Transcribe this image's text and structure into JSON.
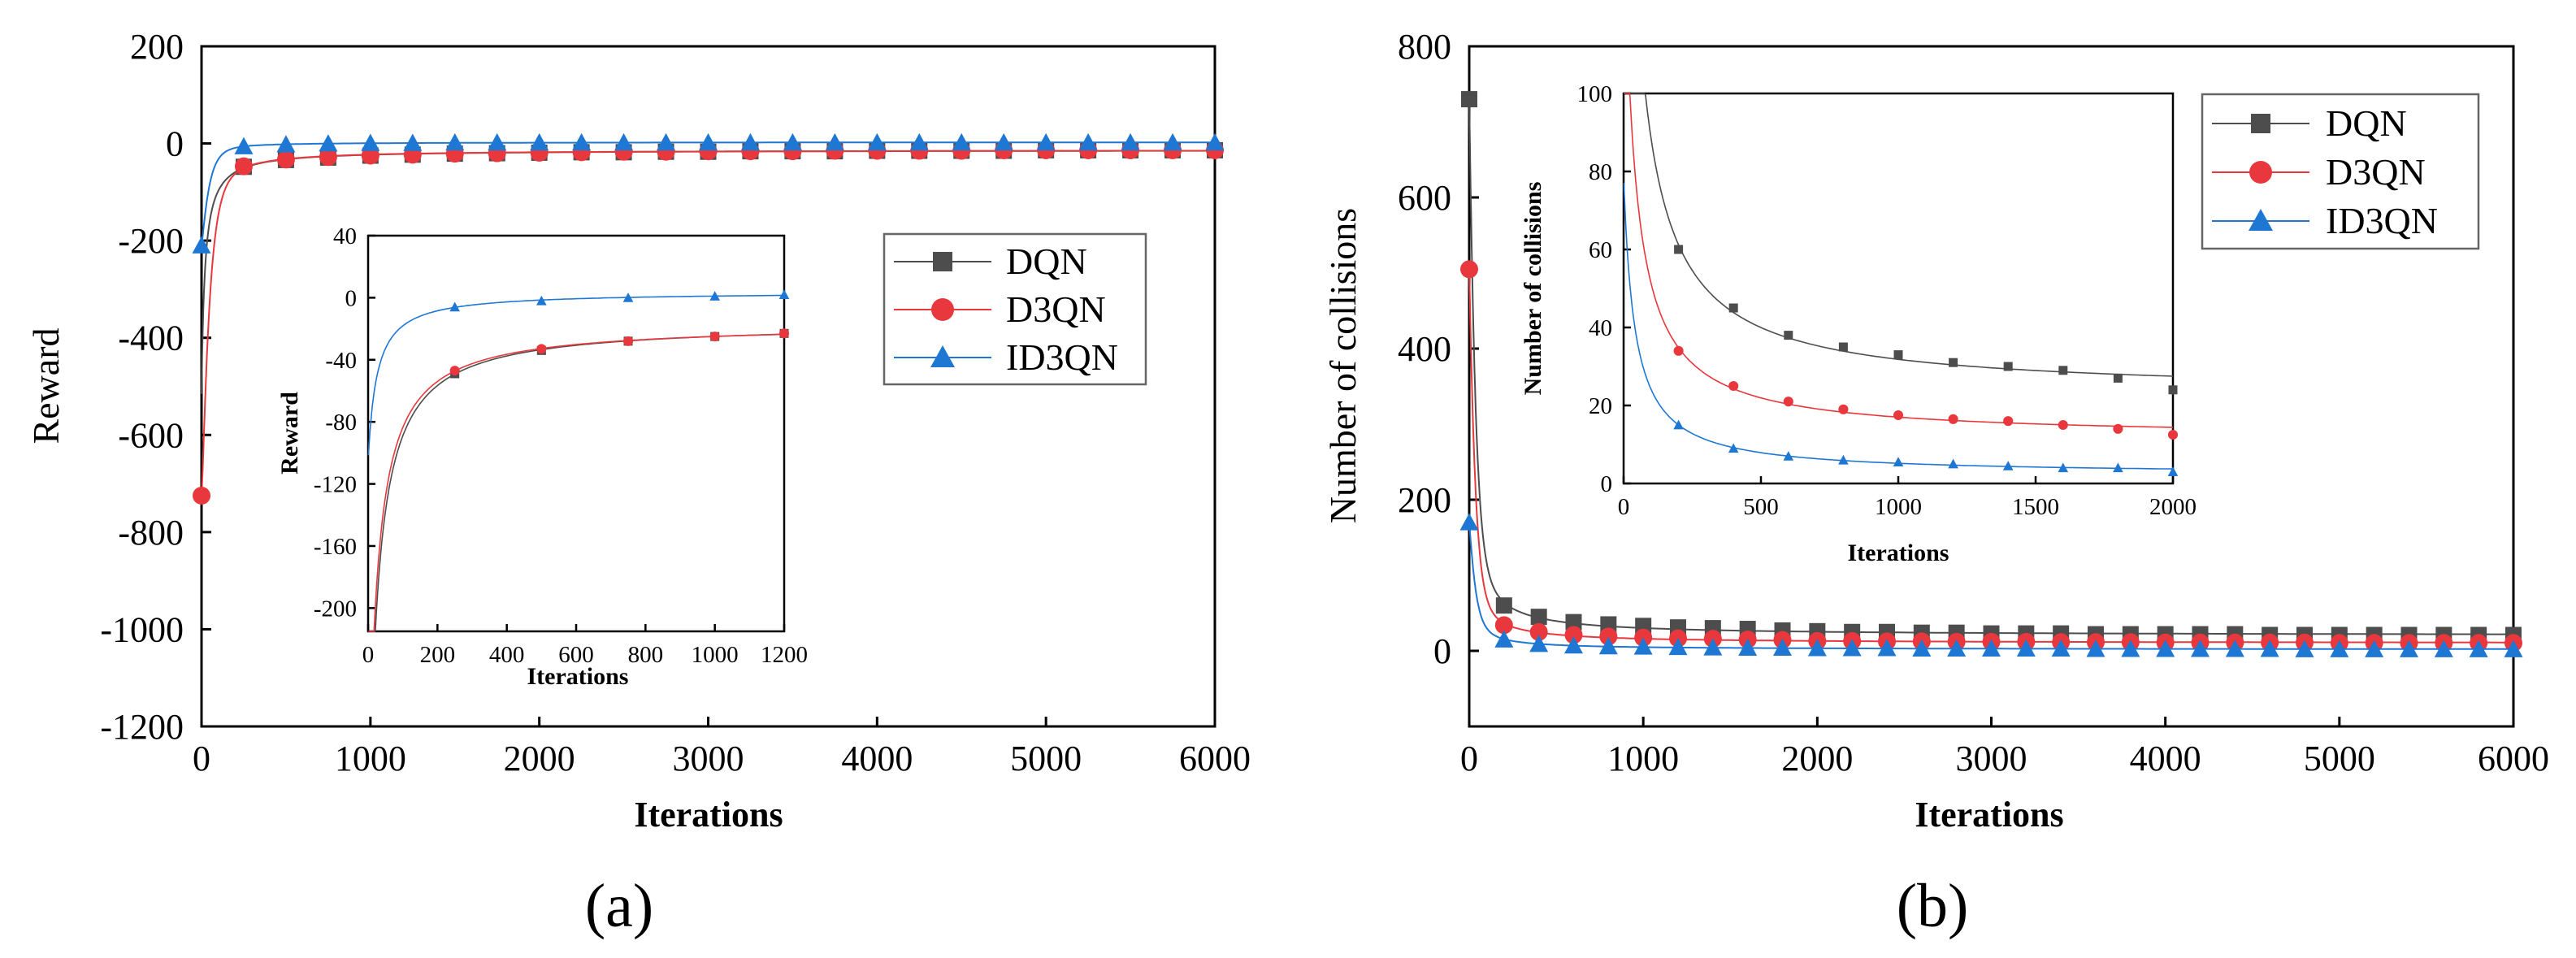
{
  "colors": {
    "DQN": "#4d4d4d",
    "D3QN": "#e8383d",
    "ID3QN": "#1f77d4"
  },
  "chart_data": [
    {
      "type": "line",
      "panel_label": "(a)",
      "xlabel": "Iterations",
      "ylabel": "Reward",
      "xlim": [
        0,
        6000
      ],
      "ylim": [
        -1200,
        200
      ],
      "xticks": [
        0,
        1000,
        2000,
        3000,
        4000,
        5000,
        6000
      ],
      "yticks": [
        200,
        0,
        -200,
        -400,
        -600,
        -800,
        -1000,
        -1200
      ],
      "legend": [
        "DQN",
        "D3QN",
        "ID3QN"
      ],
      "legend_position": "center-right",
      "series": [
        {
          "name": "DQN",
          "marker": "square",
          "x": [
            250,
            500,
            750,
            1000,
            1250,
            1500,
            1750,
            2000,
            2250,
            2500,
            2750,
            3000,
            3250,
            3500,
            3750,
            4000,
            4250,
            4500,
            4750,
            5000,
            5250,
            5500,
            5750,
            6000
          ],
          "values": [
            -48,
            -34,
            -29,
            -25,
            -23,
            -21,
            -20,
            -19,
            -18,
            -18,
            -17,
            -17,
            -16,
            -16,
            -16,
            -15,
            -15,
            -15,
            -15,
            -14,
            -14,
            -14,
            -14,
            -14
          ]
        },
        {
          "name": "D3QN",
          "marker": "circle",
          "x": [
            0,
            250,
            500,
            750,
            1000,
            1250,
            1500,
            1750,
            2000,
            2250,
            2500,
            2750,
            3000,
            3250,
            3500,
            3750,
            4000,
            4250,
            4500,
            4750,
            5000,
            5250,
            5500,
            5750,
            6000
          ],
          "values": [
            -725,
            -47,
            -33,
            -28,
            -25,
            -23,
            -21,
            -20,
            -19,
            -18,
            -17,
            -17,
            -16,
            -16,
            -16,
            -15,
            -15,
            -15,
            -15,
            -14,
            -14,
            -14,
            -14,
            -14,
            -14
          ]
        },
        {
          "name": "ID3QN",
          "marker": "triangle",
          "x": [
            0,
            250,
            500,
            750,
            1000,
            1250,
            1500,
            1750,
            2000,
            2250,
            2500,
            2750,
            3000,
            3250,
            3500,
            3750,
            4000,
            4250,
            4500,
            4750,
            5000,
            5250,
            5500,
            5750,
            6000
          ],
          "values": [
            -210,
            -6,
            -2,
            0,
            1,
            1,
            2,
            2,
            2,
            2,
            2,
            2,
            2,
            2,
            2,
            2,
            2,
            2,
            2,
            2,
            2,
            2,
            2,
            2,
            2
          ]
        }
      ],
      "inset": {
        "xlabel": "Iterations",
        "ylabel": "Reward",
        "xlim": [
          0,
          1200
        ],
        "ylim": [
          -215,
          40
        ],
        "xticks": [
          0,
          200,
          400,
          600,
          800,
          1000,
          1200
        ],
        "yticks": [
          40,
          0,
          -40,
          -80,
          -120,
          -160,
          -200
        ],
        "series": [
          {
            "name": "DQN",
            "x": [
              250,
              500,
              750,
              1000,
              1200
            ],
            "values": [
              -49,
              -34,
              -28,
              -25,
              -23
            ]
          },
          {
            "name": "D3QN",
            "x": [
              250,
              500,
              750,
              1000,
              1200
            ],
            "values": [
              -47,
              -33,
              -28,
              -25,
              -23
            ]
          },
          {
            "name": "ID3QN",
            "x": [
              250,
              500,
              750,
              1000,
              1200
            ],
            "values": [
              -6,
              -2,
              0,
              1,
              2
            ]
          }
        ]
      }
    },
    {
      "type": "line",
      "panel_label": "(b)",
      "xlabel": "Iterations",
      "ylabel": "Number of collisions",
      "xlim": [
        0,
        6000
      ],
      "ylim": [
        -100,
        800
      ],
      "xticks": [
        0,
        1000,
        2000,
        3000,
        4000,
        5000,
        6000
      ],
      "yticks": [
        800,
        600,
        400,
        200,
        0
      ],
      "legend": [
        "DQN",
        "D3QN",
        "ID3QN"
      ],
      "legend_position": "top-right",
      "series": [
        {
          "name": "DQN",
          "marker": "square",
          "x": [
            0,
            200,
            400,
            600,
            800,
            1000,
            1200,
            1400,
            1600,
            1800,
            2000,
            2200,
            2400,
            2600,
            2800,
            3000,
            3200,
            3400,
            3600,
            3800,
            4000,
            4200,
            4400,
            4600,
            4800,
            5000,
            5200,
            5400,
            5600,
            5800,
            6000
          ],
          "values": [
            730,
            60,
            45,
            38,
            35,
            33,
            31,
            30,
            29,
            27,
            26,
            25,
            25,
            24,
            24,
            23,
            23,
            23,
            22,
            22,
            22,
            22,
            22,
            21,
            21,
            21,
            21,
            21,
            21,
            21,
            21
          ]
        },
        {
          "name": "D3QN",
          "marker": "circle",
          "x": [
            0,
            200,
            400,
            600,
            800,
            1000,
            1200,
            1400,
            1600,
            1800,
            2000,
            2200,
            2400,
            2600,
            2800,
            3000,
            3200,
            3400,
            3600,
            3800,
            4000,
            4200,
            4400,
            4600,
            4800,
            5000,
            5200,
            5400,
            5600,
            5800,
            6000
          ],
          "values": [
            505,
            34,
            25,
            21,
            19,
            17.5,
            16.5,
            16,
            15,
            14.5,
            13,
            13,
            12.5,
            12.5,
            12,
            12,
            12,
            11.5,
            11.5,
            11.5,
            11,
            11,
            11,
            11,
            11,
            10.5,
            10.5,
            10.5,
            10.5,
            10.5,
            10.5
          ]
        },
        {
          "name": "ID3QN",
          "marker": "triangle",
          "x": [
            0,
            200,
            400,
            600,
            800,
            1000,
            1200,
            1400,
            1600,
            1800,
            2000,
            2200,
            2400,
            2600,
            2800,
            3000,
            3200,
            3400,
            3600,
            3800,
            4000,
            4200,
            4400,
            4600,
            4800,
            5000,
            5200,
            5400,
            5600,
            5800,
            6000
          ],
          "values": [
            170,
            15,
            9,
            7,
            6,
            5.5,
            5,
            4.5,
            4,
            4,
            3.5,
            3.5,
            3.5,
            3,
            3,
            3,
            3,
            3,
            2.5,
            2.5,
            2.5,
            2.5,
            2.5,
            2.5,
            2,
            2,
            2,
            2,
            2,
            2,
            2
          ]
        }
      ],
      "inset": {
        "xlabel": "Iterations",
        "ylabel": "Number of collisions",
        "xlim": [
          0,
          2000
        ],
        "ylim": [
          0,
          100
        ],
        "xticks": [
          0,
          500,
          1000,
          1500,
          2000
        ],
        "yticks": [
          100,
          80,
          60,
          40,
          20,
          0
        ],
        "series": [
          {
            "name": "DQN",
            "x": [
              200,
              400,
              600,
              800,
              1000,
              1200,
              1400,
              1600,
              1800,
              2000
            ],
            "values": [
              60,
              45,
              38,
              35,
              33,
              31,
              30,
              29,
              27,
              24
            ]
          },
          {
            "name": "D3QN",
            "x": [
              200,
              400,
              600,
              800,
              1000,
              1200,
              1400,
              1600,
              1800,
              2000
            ],
            "values": [
              34,
              25,
              21,
              19,
              17.5,
              16.5,
              16,
              15,
              14,
              12.5
            ]
          },
          {
            "name": "ID3QN",
            "x": [
              200,
              400,
              600,
              800,
              1000,
              1200,
              1400,
              1600,
              1800,
              2000
            ],
            "values": [
              15,
              9,
              7,
              6,
              5.5,
              5,
              4.5,
              4,
              4,
              3
            ]
          }
        ]
      }
    }
  ]
}
